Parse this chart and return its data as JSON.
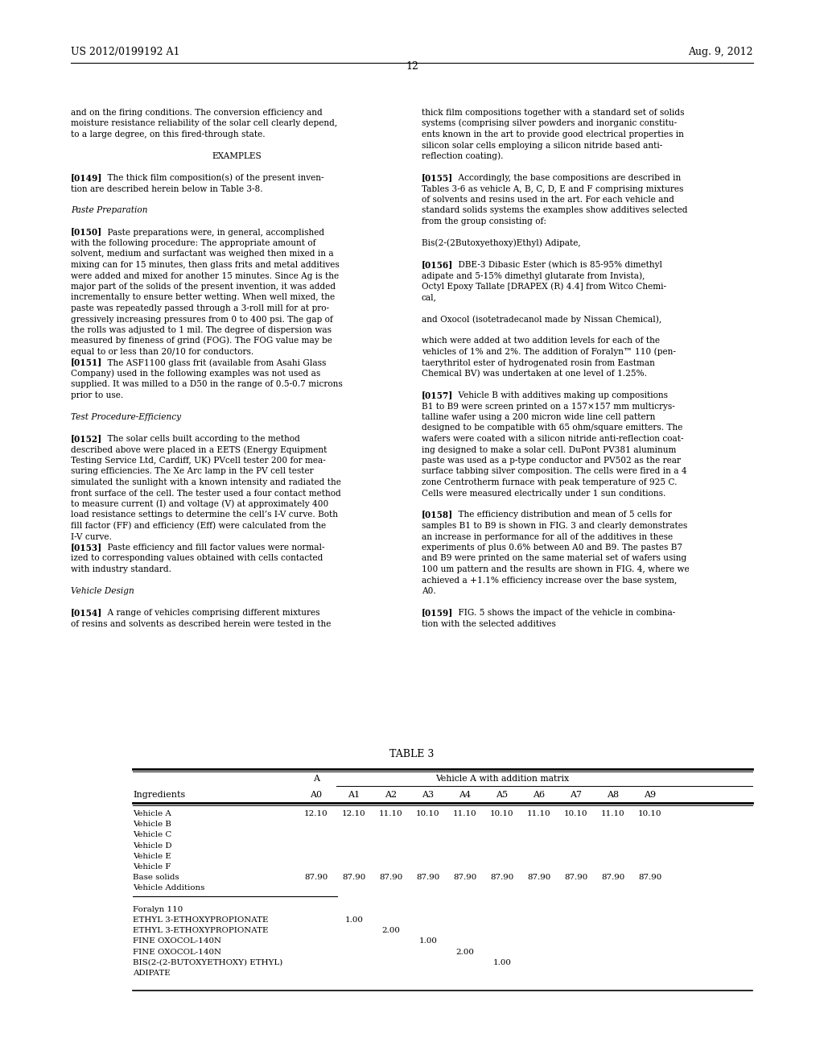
{
  "page_header_left": "US 2012/0199192 A1",
  "page_header_right": "Aug. 9, 2012",
  "page_number": "12",
  "left_column": [
    "and on the firing conditions. The conversion efficiency and",
    "moisture resistance reliability of the solar cell clearly depend,",
    "to a large degree, on this fired-through state.",
    "",
    "EXAMPLES",
    "",
    "[0149]    The thick film composition(s) of the present inven-",
    "tion are described herein below in Table 3-8.",
    "",
    "Paste Preparation",
    "",
    "[0150]    Paste preparations were, in general, accomplished",
    "with the following procedure: The appropriate amount of",
    "solvent, medium and surfactant was weighed then mixed in a",
    "mixing can for 15 minutes, then glass frits and metal additives",
    "were added and mixed for another 15 minutes. Since Ag is the",
    "major part of the solids of the present invention, it was added",
    "incrementally to ensure better wetting. When well mixed, the",
    "paste was repeatedly passed through a 3-roll mill for at pro-",
    "gressively increasing pressures from 0 to 400 psi. The gap of",
    "the rolls was adjusted to 1 mil. The degree of dispersion was",
    "measured by fineness of grind (FOG). The FOG value may be",
    "equal to or less than 20/10 for conductors.",
    "[0151]    The ASF1100 glass frit (available from Asahi Glass",
    "Company) used in the following examples was not used as",
    "supplied. It was milled to a D50 in the range of 0.5-0.7 microns",
    "prior to use.",
    "",
    "Test Procedure-Efficiency",
    "",
    "[0152]    The solar cells built according to the method",
    "described above were placed in a EETS (Energy Equipment",
    "Testing Service Ltd, Cardiff, UK) PVcell tester 200 for mea-",
    "suring efficiencies. The Xe Arc lamp in the PV cell tester",
    "simulated the sunlight with a known intensity and radiated the",
    "front surface of the cell. The tester used a four contact method",
    "to measure current (I) and voltage (V) at approximately 400",
    "load resistance settings to determine the cell’s I-V curve. Both",
    "fill factor (FF) and efficiency (Eff) were calculated from the",
    "I-V curve.",
    "[0153]    Paste efficiency and fill factor values were normal-",
    "ized to corresponding values obtained with cells contacted",
    "with industry standard.",
    "",
    "Vehicle Design",
    "",
    "[0154]    A range of vehicles comprising different mixtures",
    "of resins and solvents as described herein were tested in the"
  ],
  "right_column": [
    "thick film compositions together with a standard set of solids",
    "systems (comprising silver powders and inorganic constitu-",
    "ents known in the art to provide good electrical properties in",
    "silicon solar cells employing a silicon nitride based anti-",
    "reflection coating).",
    "",
    "[0155]    Accordingly, the base compositions are described in",
    "Tables 3-6 as vehicle A, B, C, D, E and F comprising mixtures",
    "of solvents and resins used in the art. For each vehicle and",
    "standard solids systems the examples show additives selected",
    "from the group consisting of:",
    "",
    "Bis(2-(2Butoxyethoxy)Ethyl) Adipate,",
    "",
    "[0156]    DBE-3 Dibasic Ester (which is 85-95% dimethyl",
    "adipate and 5-15% dimethyl glutarate from Invista),",
    "Octyl Epoxy Tallate [DRAPEX (R) 4.4] from Witco Chemi-",
    "cal,",
    "",
    "and Oxocol (isotetradecanol made by Nissan Chemical),",
    "",
    "which were added at two addition levels for each of the",
    "vehicles of 1% and 2%. The addition of Foralyn™ 110 (pen-",
    "taerythritol ester of hydrogenated rosin from Eastman",
    "Chemical BV) was undertaken at one level of 1.25%.",
    "",
    "[0157]    Vehicle B with additives making up compositions",
    "B1 to B9 were screen printed on a 157×157 mm multicrys-",
    "talline wafer using a 200 micron wide line cell pattern",
    "designed to be compatible with 65 ohm/square emitters. The",
    "wafers were coated with a silicon nitride anti-reflection coat-",
    "ing designed to make a solar cell. DuPont PV381 aluminum",
    "paste was used as a p-type conductor and PV502 as the rear",
    "surface tabbing silver composition. The cells were fired in a 4",
    "zone Centrotherm furnace with peak temperature of 925 C.",
    "Cells were measured electrically under 1 sun conditions.",
    "",
    "[0158]    The efficiency distribution and mean of 5 cells for",
    "samples B1 to B9 is shown in FIG. 3 and clearly demonstrates",
    "an increase in performance for all of the additives in these",
    "experiments of plus 0.6% between A0 and B9. The pastes B7",
    "and B9 were printed on the same material set of wafers using",
    "100 um pattern and the results are shown in FIG. 4, where we",
    "achieved a +1.1% efficiency increase over the base system,",
    "A0.",
    "",
    "[0159]    FIG. 5 shows the impact of the vehicle in combina-",
    "tion with the selected additives"
  ],
  "table_title": "TABLE 3",
  "table_rows": [
    [
      "Vehicle A",
      "12.10",
      "12.10",
      "11.10",
      "10.10",
      "11.10",
      "10.10",
      "11.10",
      "10.10",
      "11.10",
      "10.10"
    ],
    [
      "Vehicle B",
      "",
      "",
      "",
      "",
      "",
      "",
      "",
      "",
      "",
      ""
    ],
    [
      "Vehicle C",
      "",
      "",
      "",
      "",
      "",
      "",
      "",
      "",
      "",
      ""
    ],
    [
      "Vehicle D",
      "",
      "",
      "",
      "",
      "",
      "",
      "",
      "",
      "",
      ""
    ],
    [
      "Vehicle E",
      "",
      "",
      "",
      "",
      "",
      "",
      "",
      "",
      "",
      ""
    ],
    [
      "Vehicle F",
      "",
      "",
      "",
      "",
      "",
      "",
      "",
      "",
      "",
      ""
    ],
    [
      "Base solids",
      "87.90",
      "87.90",
      "87.90",
      "87.90",
      "87.90",
      "87.90",
      "87.90",
      "87.90",
      "87.90",
      "87.90"
    ],
    [
      "Vehicle Additions",
      "",
      "",
      "",
      "",
      "",
      "",
      "",
      "",
      "",
      ""
    ],
    [
      "",
      "",
      "",
      "",
      "",
      "",
      "",
      "",
      "",
      "",
      ""
    ],
    [
      "Foralyn 110",
      "",
      "",
      "",
      "",
      "",
      "",
      "",
      "",
      "",
      ""
    ],
    [
      "ETHYL 3-ETHOXYPROPIONATE",
      "",
      "1.00",
      "",
      "",
      "",
      "",
      "",
      "",
      "",
      ""
    ],
    [
      "ETHYL 3-ETHOXYPROPIONATE",
      "",
      "",
      "2.00",
      "",
      "",
      "",
      "",
      "",
      "",
      ""
    ],
    [
      "FINE OXOCOL-140N",
      "",
      "",
      "",
      "1.00",
      "",
      "",
      "",
      "",
      "",
      ""
    ],
    [
      "FINE OXOCOL-140N",
      "",
      "",
      "",
      "",
      "2.00",
      "",
      "",
      "",
      "",
      ""
    ],
    [
      "BIS(2-(2-BUTOXYETHOXY) ETHYL)",
      "",
      "",
      "",
      "",
      "",
      "1.00",
      "",
      "",
      "",
      ""
    ],
    [
      "ADIPATE",
      "",
      "",
      "",
      "",
      "",
      "",
      "",
      "",
      "",
      ""
    ]
  ],
  "bg_color": "#ffffff",
  "text_color": "#000000"
}
